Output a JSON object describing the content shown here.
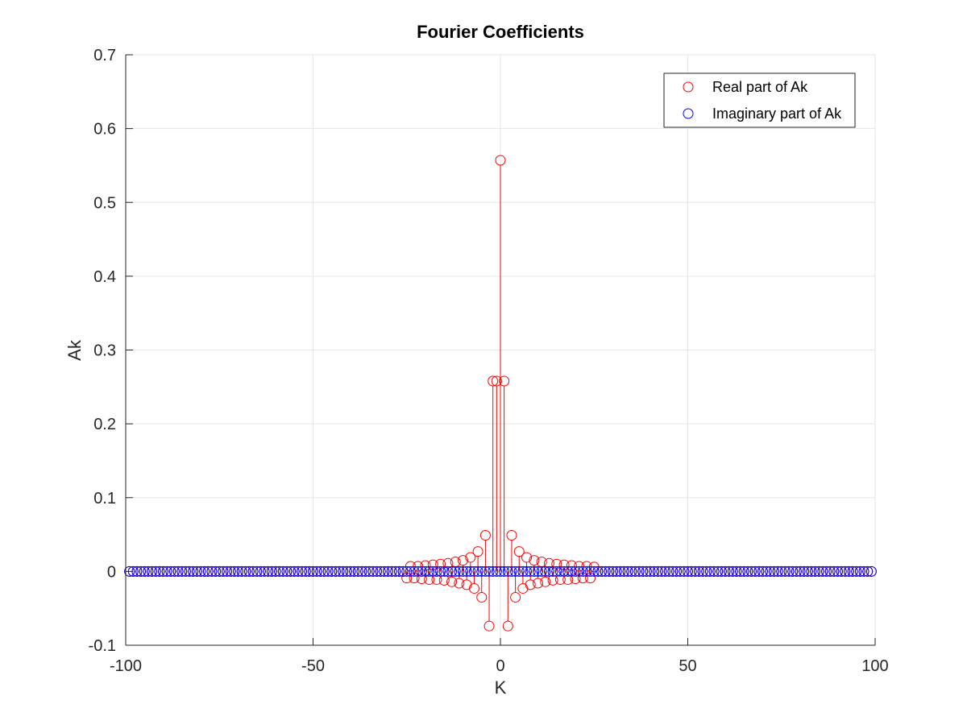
{
  "chart_data": {
    "type": "scatter",
    "title": "Fourier Coefficients",
    "xlabel": "K",
    "ylabel": "Ak",
    "xlim": [
      -100,
      100
    ],
    "ylim": [
      -0.1,
      0.7
    ],
    "x_ticks": [
      "-100",
      "-50",
      "0",
      "50",
      "100"
    ],
    "y_ticks": [
      "-0.1",
      "0",
      "0.1",
      "0.2",
      "0.3",
      "0.4",
      "0.5",
      "0.6",
      "0.7"
    ],
    "grid": true,
    "legend_position": "top-right",
    "marker": "open-circle-stem",
    "k_range": [
      -99,
      99
    ],
    "series": [
      {
        "name": "Real part of Ak",
        "color": "#ff0000",
        "points": [
          [
            -25,
            -0.009
          ],
          [
            -24,
            0.007
          ],
          [
            -23,
            -0.009
          ],
          [
            -22,
            0.007
          ],
          [
            -21,
            -0.01
          ],
          [
            -20,
            0.008
          ],
          [
            -19,
            -0.011
          ],
          [
            -18,
            0.009
          ],
          [
            -17,
            -0.011
          ],
          [
            -16,
            0.01
          ],
          [
            -15,
            -0.012
          ],
          [
            -14,
            0.011
          ],
          [
            -13,
            -0.014
          ],
          [
            -12,
            0.013
          ],
          [
            -11,
            -0.016
          ],
          [
            -10,
            0.015
          ],
          [
            -9,
            -0.018
          ],
          [
            -8,
            0.019
          ],
          [
            -7,
            -0.023
          ],
          [
            -6,
            0.027
          ],
          [
            -5,
            -0.035
          ],
          [
            -4,
            0.049
          ],
          [
            -3,
            -0.074
          ],
          [
            -2,
            0.258
          ],
          [
            -1,
            0.258
          ],
          [
            0,
            0.557
          ],
          [
            1,
            0.258
          ],
          [
            2,
            -0.074
          ],
          [
            3,
            0.049
          ],
          [
            4,
            -0.035
          ],
          [
            5,
            0.027
          ],
          [
            6,
            -0.023
          ],
          [
            7,
            0.019
          ],
          [
            8,
            -0.018
          ],
          [
            9,
            0.015
          ],
          [
            10,
            -0.016
          ],
          [
            11,
            0.013
          ],
          [
            12,
            -0.014
          ],
          [
            13,
            0.011
          ],
          [
            14,
            -0.012
          ],
          [
            15,
            0.01
          ],
          [
            16,
            -0.011
          ],
          [
            17,
            0.009
          ],
          [
            18,
            -0.011
          ],
          [
            19,
            0.008
          ],
          [
            20,
            -0.01
          ],
          [
            21,
            0.007
          ],
          [
            22,
            -0.009
          ],
          [
            23,
            0.007
          ],
          [
            24,
            -0.009
          ],
          [
            25,
            0.006
          ]
        ],
        "default_value": 0
      },
      {
        "name": "Imaginary part of Ak",
        "color": "#0000ff",
        "points": [],
        "default_value": 0
      }
    ]
  }
}
